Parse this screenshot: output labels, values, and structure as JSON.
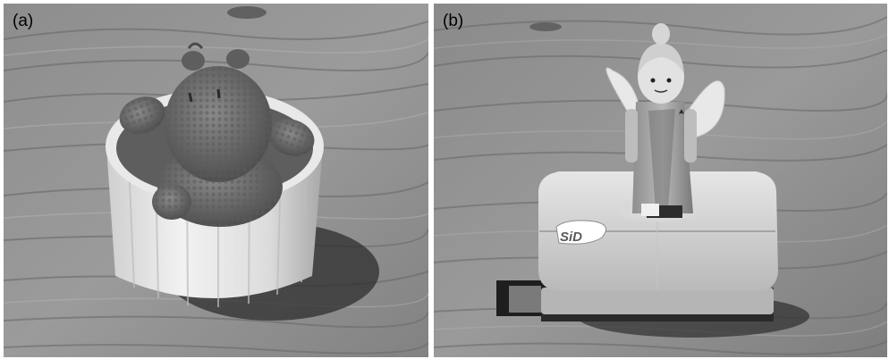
{
  "panels": [
    {
      "label": "(a)",
      "subject": "crocheted-bear-in-ramekin"
    },
    {
      "label": "(b)",
      "subject": "angel-figurine-on-hole-punch"
    }
  ],
  "colors": {
    "wood_light": "#9a9a9a",
    "wood_dark": "#5c5c5c",
    "ceramic": "#e4e4e4",
    "yarn": "#6e6e6e",
    "shadow": "#2e2e2e"
  },
  "punch": {
    "logo_text": "SiD"
  }
}
